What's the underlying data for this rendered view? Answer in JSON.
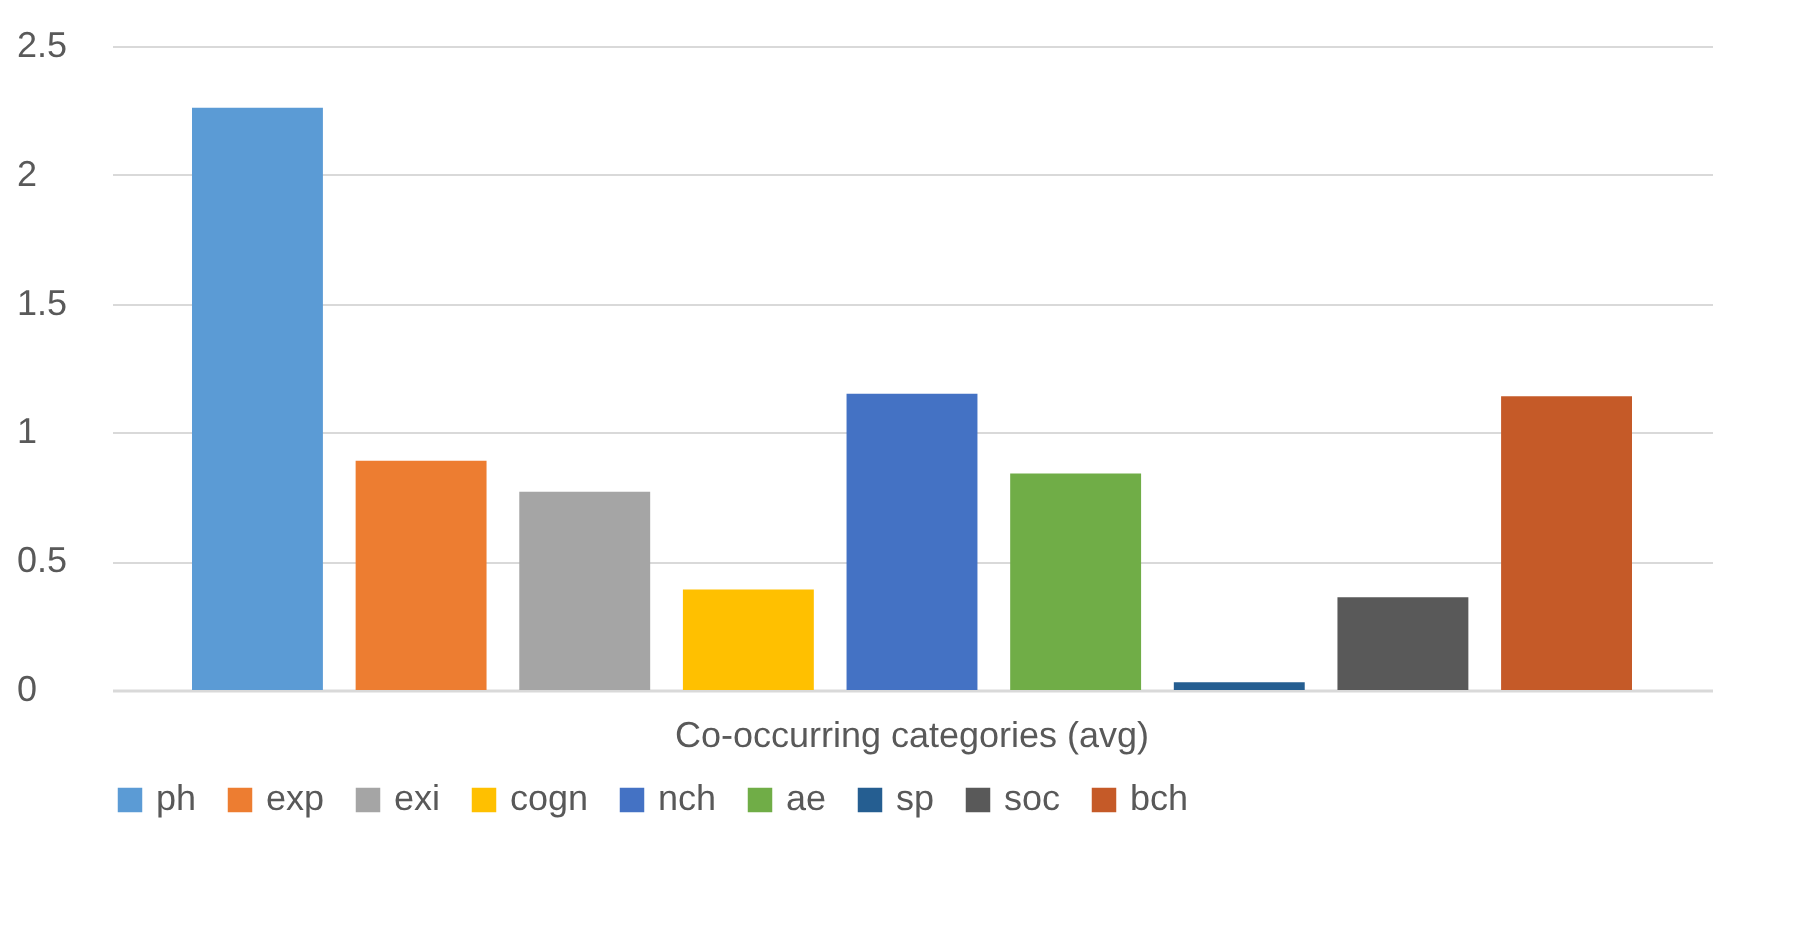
{
  "chart_data": {
    "type": "bar",
    "categories": [
      "Co-occurring categories (avg)"
    ],
    "series": [
      {
        "name": "ph",
        "color": "#5b9bd5",
        "values": [
          2.26
        ]
      },
      {
        "name": "exp",
        "color": "#ed7d31",
        "values": [
          0.89
        ]
      },
      {
        "name": "exi",
        "color": "#a5a5a5",
        "values": [
          0.77
        ]
      },
      {
        "name": "cogn",
        "color": "#ffc000",
        "values": [
          0.39
        ]
      },
      {
        "name": "nch",
        "color": "#4472c4",
        "values": [
          1.15
        ]
      },
      {
        "name": "ae",
        "color": "#70ad47",
        "values": [
          0.84
        ]
      },
      {
        "name": "sp",
        "color": "#255e91",
        "values": [
          0.03
        ]
      },
      {
        "name": "soc",
        "color": "#595959",
        "values": [
          0.36
        ]
      },
      {
        "name": "bch",
        "color": "#c55a28",
        "values": [
          1.14
        ]
      }
    ],
    "ylim": [
      0,
      2.5
    ],
    "yticks": [
      {
        "value": 0,
        "label": "0"
      },
      0.5,
      {
        "value": 1,
        "label": "1"
      },
      1.5,
      {
        "value": 2,
        "label": "2"
      },
      2.5
    ],
    "grid": "y",
    "legend": "bottom"
  }
}
